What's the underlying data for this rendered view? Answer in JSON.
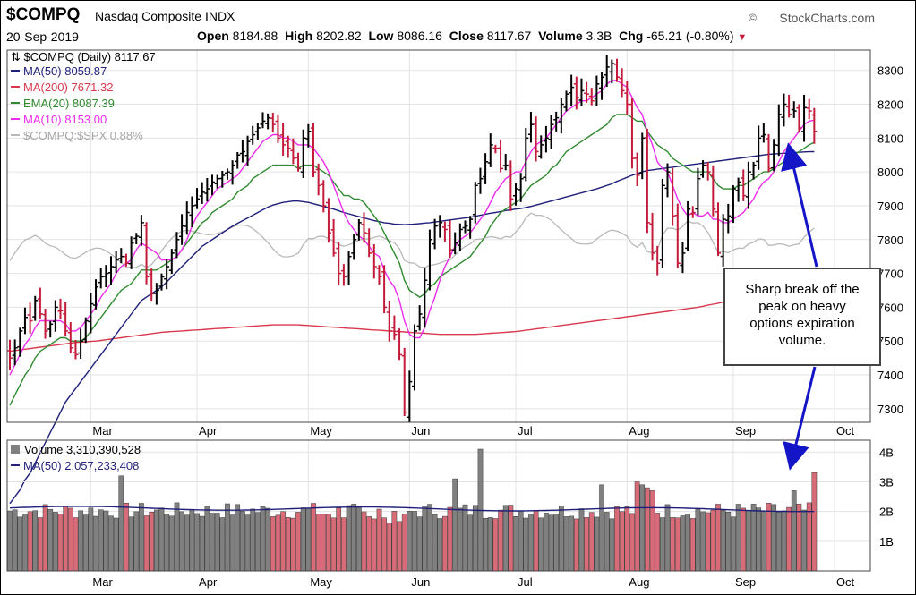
{
  "header": {
    "symbol": "$COMPQ",
    "name": "Nasdaq Composite INDX",
    "brand": "StockCharts.com",
    "date": "20-Sep-2019",
    "open_label": "Open",
    "open": "8184.88",
    "high_label": "High",
    "high": "8202.82",
    "low_label": "Low",
    "low": "8086.16",
    "close_label": "Close",
    "close": "8117.67",
    "volume_label": "Volume",
    "volume": "3.3B",
    "chg_label": "Chg",
    "chg": "-65.21 (-0.80%)"
  },
  "legend": {
    "main": "$COMPQ (Daily) 8117.67",
    "ma50": "MA(50) 8059.87",
    "ma200": "MA(200) 7671.32",
    "ema20": "EMA(20) 8087.39",
    "ma10": "MA(10) 8153.00",
    "rel": "$COMPQ:$SPX 0.88%",
    "volume": "Volume 3,310,390,528",
    "vol_ma50": "MA(50) 2,057,233,408"
  },
  "annotation": {
    "text_lines": [
      "Sharp break off the",
      "peak on heavy",
      "options expiration",
      "volume."
    ]
  },
  "colors": {
    "up": "#000000",
    "down": "#c41b3a",
    "ma50": "#1f1f7a",
    "ma200": "#d8394d",
    "ema20": "#2f8a2f",
    "ma10": "#ee2aee",
    "rel": "#b8b8b8",
    "vol_up": "#808080",
    "vol_down": "#d86b78",
    "arrow": "#1515c8"
  },
  "chart_data": {
    "type": "line",
    "series_type": "ohlc",
    "price_axis": {
      "ylim": [
        7260,
        8360
      ],
      "ticks": [
        7300,
        7400,
        7500,
        7600,
        7700,
        7800,
        7900,
        8000,
        8100,
        8200,
        8300
      ]
    },
    "volume_axis": {
      "ylim": [
        0,
        4400000000
      ],
      "ticks": [
        1000000000,
        2000000000,
        3000000000,
        4000000000
      ],
      "tick_labels": [
        "1B",
        "2B",
        "3B",
        "4B"
      ]
    },
    "month_labels": [
      "Mar",
      "Apr",
      "May",
      "Jun",
      "Jul",
      "Aug",
      "Sep",
      "Oct"
    ],
    "month_starts": [
      16,
      37,
      59,
      79,
      100,
      122,
      143,
      163
    ],
    "closes": [
      7450,
      7480,
      7530,
      7570,
      7560,
      7620,
      7580,
      7530,
      7550,
      7600,
      7590,
      7530,
      7480,
      7460,
      7500,
      7560,
      7610,
      7660,
      7690,
      7700,
      7720,
      7740,
      7750,
      7730,
      7790,
      7810,
      7850,
      7690,
      7640,
      7650,
      7690,
      7720,
      7760,
      7800,
      7840,
      7880,
      7900,
      7920,
      7940,
      7950,
      7970,
      7980,
      7990,
      8000,
      8020,
      8050,
      8060,
      8090,
      8110,
      8130,
      8150,
      8160,
      8140,
      8100,
      8080,
      8070,
      8040,
      8010,
      8100,
      8120,
      8000,
      7960,
      7900,
      7820,
      7760,
      7700,
      7690,
      7750,
      7800,
      7850,
      7820,
      7760,
      7720,
      7690,
      7600,
      7530,
      7520,
      7460,
      7290,
      7380,
      7530,
      7580,
      7680,
      7800,
      7840,
      7850,
      7830,
      7770,
      7790,
      7830,
      7840,
      7860,
      7960,
      7980,
      8030,
      8080,
      8070,
      8010,
      8020,
      7920,
      7950,
      7980,
      8100,
      8140,
      8060,
      8080,
      8100,
      8140,
      8160,
      8200,
      8230,
      8250,
      8220,
      8240,
      8230,
      8210,
      8260,
      8280,
      8310,
      8320,
      8280,
      8240,
      8200,
      8040,
      7990,
      8100,
      7850,
      7760,
      7730,
      7960,
      8000,
      7870,
      7730,
      7760,
      7890,
      7880,
      7980,
      8020,
      8000,
      7890,
      7760,
      7860,
      7870,
      7950,
      7970,
      7930,
      8000,
      8020,
      8100,
      8110,
      8010,
      8080,
      8170,
      8200,
      8170,
      8180,
      8130,
      8190,
      8180,
      8120
    ],
    "ma50": [
      7020,
      7040,
      7060,
      7090,
      7110,
      7140,
      7170,
      7200,
      7230,
      7260,
      7290,
      7320,
      7340,
      7360,
      7380,
      7400,
      7420,
      7440,
      7460,
      7480,
      7500,
      7520,
      7540,
      7560,
      7580,
      7600,
      7620,
      7630,
      7640,
      7650,
      7660,
      7675,
      7690,
      7705,
      7720,
      7735,
      7750,
      7765,
      7780,
      7790,
      7800,
      7810,
      7820,
      7830,
      7840,
      7848,
      7856,
      7864,
      7872,
      7880,
      7888,
      7896,
      7902,
      7906,
      7910,
      7912,
      7914,
      7914,
      7912,
      7910,
      7906,
      7902,
      7898,
      7894,
      7890,
      7885,
      7880,
      7876,
      7872,
      7868,
      7864,
      7860,
      7856,
      7853,
      7850,
      7848,
      7846,
      7845,
      7844,
      7845,
      7846,
      7847,
      7849,
      7850,
      7852,
      7854,
      7856,
      7858,
      7860,
      7862,
      7864,
      7866,
      7869,
      7872,
      7875,
      7878,
      7880,
      7883,
      7886,
      7888,
      7890,
      7892,
      7895,
      7898,
      7902,
      7906,
      7910,
      7914,
      7918,
      7922,
      7926,
      7930,
      7934,
      7938,
      7942,
      7946,
      7950,
      7955,
      7960,
      7965,
      7972,
      7978,
      7984,
      7990,
      7995,
      8000,
      8004,
      8006,
      8008,
      8010,
      8012,
      8014,
      8016,
      8018,
      8020,
      8022,
      8024,
      8026,
      8028,
      8030,
      8032,
      8034,
      8036,
      8038,
      8040,
      8042,
      8044,
      8046,
      8048,
      8050,
      8052,
      8053,
      8054,
      8055,
      8056,
      8057,
      8058,
      8059,
      8059.5,
      8059.87
    ],
    "ma200": [
      7470,
      7472,
      7474,
      7476,
      7478,
      7480,
      7482,
      7484,
      7486,
      7488,
      7490,
      7492,
      7494,
      7496,
      7497,
      7498,
      7499,
      7500,
      7502,
      7504,
      7506,
      7508,
      7510,
      7512,
      7514,
      7516,
      7518,
      7520,
      7522,
      7524,
      7526,
      7527,
      7528,
      7529,
      7530,
      7531,
      7532,
      7533,
      7534,
      7535,
      7536,
      7537,
      7538,
      7539,
      7540,
      7541,
      7542,
      7543,
      7544,
      7545,
      7546,
      7547,
      7548,
      7548,
      7548,
      7548,
      7548,
      7548,
      7547,
      7546,
      7545,
      7544,
      7543,
      7542,
      7541,
      7540,
      7539,
      7538,
      7537,
      7536,
      7535,
      7534,
      7533,
      7532,
      7531,
      7530,
      7529,
      7528,
      7527,
      7526,
      7525,
      7524,
      7523,
      7522,
      7521,
      7520,
      7520,
      7520,
      7520,
      7520,
      7520,
      7520,
      7520,
      7521,
      7522,
      7523,
      7524,
      7525,
      7526,
      7527,
      7528,
      7530,
      7532,
      7534,
      7536,
      7538,
      7540,
      7542,
      7544,
      7546,
      7548,
      7550,
      7552,
      7554,
      7556,
      7558,
      7560,
      7562,
      7564,
      7566,
      7568,
      7570,
      7572,
      7574,
      7576,
      7578,
      7580,
      7582,
      7584,
      7586,
      7588,
      7590,
      7592,
      7594,
      7596,
      7598,
      7600,
      7603,
      7606,
      7609,
      7612,
      7615,
      7618,
      7621,
      7624,
      7627,
      7630,
      7633,
      7636,
      7639,
      7642,
      7645,
      7648,
      7651,
      7654,
      7657,
      7660,
      7663,
      7667,
      7671.32
    ],
    "ema20": [
      7310,
      7340,
      7370,
      7400,
      7420,
      7450,
      7470,
      7480,
      7490,
      7500,
      7510,
      7510,
      7500,
      7500,
      7500,
      7510,
      7530,
      7550,
      7570,
      7590,
      7610,
      7630,
      7650,
      7660,
      7670,
      7690,
      7710,
      7710,
      7710,
      7710,
      7720,
      7730,
      7740,
      7750,
      7770,
      7790,
      7810,
      7830,
      7850,
      7860,
      7880,
      7890,
      7900,
      7910,
      7920,
      7940,
      7950,
      7960,
      7980,
      7990,
      8000,
      8010,
      8020,
      8020,
      8020,
      8020,
      8020,
      8010,
      8020,
      8020,
      8020,
      8010,
      8000,
      7990,
      7970,
      7950,
      7930,
      7930,
      7920,
      7920,
      7910,
      7890,
      7870,
      7850,
      7820,
      7790,
      7760,
      7730,
      7680,
      7650,
      7640,
      7630,
      7640,
      7660,
      7670,
      7690,
      7700,
      7710,
      7720,
      7730,
      7740,
      7750,
      7770,
      7790,
      7810,
      7840,
      7860,
      7880,
      7890,
      7900,
      7910,
      7920,
      7940,
      7960,
      7970,
      7980,
      7990,
      8010,
      8020,
      8040,
      8060,
      8070,
      8080,
      8090,
      8100,
      8110,
      8120,
      8130,
      8140,
      8160,
      8170,
      8170,
      8170,
      8160,
      8150,
      8150,
      8120,
      8100,
      8080,
      8070,
      8060,
      8040,
      8030,
      8020,
      8010,
      8000,
      8000,
      8000,
      8000,
      7980,
      7960,
      7950,
      7950,
      7950,
      7960,
      7960,
      7970,
      7980,
      7990,
      8000,
      8000,
      8010,
      8020,
      8030,
      8040,
      8050,
      8060,
      8070,
      8080,
      8087.39
    ],
    "ma10": [
      7400,
      7430,
      7460,
      7490,
      7510,
      7540,
      7560,
      7560,
      7560,
      7560,
      7560,
      7550,
      7530,
      7530,
      7540,
      7560,
      7580,
      7600,
      7630,
      7650,
      7670,
      7700,
      7720,
      7730,
      7740,
      7770,
      7790,
      7780,
      7770,
      7760,
      7740,
      7740,
      7740,
      7750,
      7770,
      7800,
      7840,
      7870,
      7890,
      7910,
      7930,
      7950,
      7960,
      7970,
      7980,
      7990,
      8010,
      8030,
      8050,
      8070,
      8090,
      8100,
      8110,
      8110,
      8100,
      8100,
      8090,
      8080,
      8080,
      8080,
      8070,
      8050,
      8030,
      8000,
      7960,
      7920,
      7880,
      7850,
      7830,
      7810,
      7800,
      7780,
      7760,
      7750,
      7710,
      7680,
      7660,
      7620,
      7560,
      7520,
      7510,
      7510,
      7540,
      7590,
      7630,
      7680,
      7720,
      7750,
      7780,
      7800,
      7810,
      7820,
      7840,
      7860,
      7880,
      7910,
      7940,
      7960,
      7980,
      7990,
      8000,
      8000,
      8030,
      8060,
      8080,
      8090,
      8100,
      8120,
      8140,
      8160,
      8180,
      8190,
      8200,
      8210,
      8210,
      8220,
      8230,
      8240,
      8260,
      8270,
      8270,
      8260,
      8250,
      8220,
      8190,
      8170,
      8120,
      8080,
      8030,
      8010,
      8000,
      7960,
      7920,
      7890,
      7870,
      7880,
      7870,
      7870,
      7880,
      7860,
      7860,
      7850,
      7850,
      7860,
      7870,
      7880,
      7900,
      7920,
      7950,
      7970,
      7980,
      8000,
      8030,
      8060,
      8080,
      8100,
      8120,
      8140,
      8150,
      8153
    ]
  }
}
